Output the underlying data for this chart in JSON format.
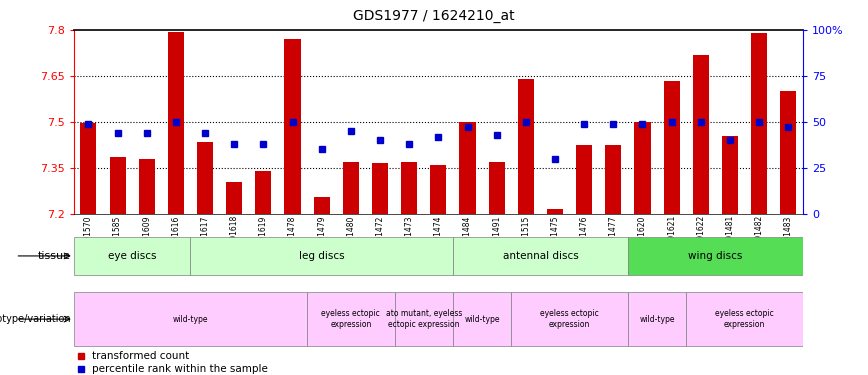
{
  "title": "GDS1977 / 1624210_at",
  "samples": [
    "GSM91570",
    "GSM91585",
    "GSM91609",
    "GSM91616",
    "GSM91617",
    "GSM91618",
    "GSM91619",
    "GSM91478",
    "GSM91479",
    "GSM91480",
    "GSM91472",
    "GSM91473",
    "GSM91474",
    "GSM91484",
    "GSM91491",
    "GSM91515",
    "GSM91475",
    "GSM91476",
    "GSM91477",
    "GSM91620",
    "GSM91621",
    "GSM91622",
    "GSM91481",
    "GSM91482",
    "GSM91483"
  ],
  "transformed_count": [
    7.495,
    7.385,
    7.38,
    7.795,
    7.435,
    7.305,
    7.34,
    7.77,
    7.255,
    7.37,
    7.365,
    7.37,
    7.36,
    7.5,
    7.37,
    7.64,
    7.215,
    7.425,
    7.425,
    7.5,
    7.635,
    7.72,
    7.455,
    7.79,
    7.6
  ],
  "percentile": [
    49,
    44,
    44,
    50,
    44,
    38,
    38,
    50,
    35,
    45,
    40,
    38,
    42,
    47,
    43,
    50,
    30,
    49,
    49,
    49,
    50,
    50,
    40,
    50,
    47
  ],
  "ylim_left": [
    7.2,
    7.8
  ],
  "ylim_right": [
    0,
    100
  ],
  "yticks_left": [
    7.2,
    7.35,
    7.5,
    7.65,
    7.8
  ],
  "yticks_right": [
    0,
    25,
    50,
    75,
    100
  ],
  "hlines": [
    7.35,
    7.5,
    7.65
  ],
  "bar_color": "#cc0000",
  "dot_color": "#0000cc",
  "tissue_groups": [
    {
      "label": "eye discs",
      "start": 0,
      "end": 4,
      "color": "#ccffcc"
    },
    {
      "label": "leg discs",
      "start": 4,
      "end": 13,
      "color": "#ccffcc"
    },
    {
      "label": "antennal discs",
      "start": 13,
      "end": 19,
      "color": "#ccffcc"
    },
    {
      "label": "wing discs",
      "start": 19,
      "end": 25,
      "color": "#55dd55"
    }
  ],
  "genotype_groups": [
    {
      "label": "wild-type",
      "start": 0,
      "end": 8,
      "color": "#ffccff"
    },
    {
      "label": "eyeless ectopic\nexpression",
      "start": 8,
      "end": 11,
      "color": "#ffccff"
    },
    {
      "label": "ato mutant, eyeless\nectopic expression",
      "start": 11,
      "end": 13,
      "color": "#ffccff"
    },
    {
      "label": "wild-type",
      "start": 13,
      "end": 15,
      "color": "#ffccff"
    },
    {
      "label": "eyeless ectopic\nexpression",
      "start": 15,
      "end": 19,
      "color": "#ffccff"
    },
    {
      "label": "wild-type",
      "start": 19,
      "end": 21,
      "color": "#ffccff"
    },
    {
      "label": "eyeless ectopic\nexpression",
      "start": 21,
      "end": 25,
      "color": "#ffccff"
    }
  ]
}
